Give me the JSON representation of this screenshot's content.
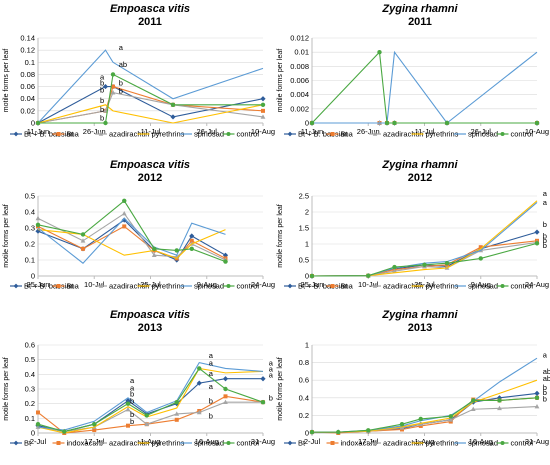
{
  "figure": {
    "ylabel": "motile forms per leaf"
  },
  "chart_data": [
    {
      "type": "line",
      "title": "Empoasca vitis",
      "subtitle": "2011",
      "ylabel": "motile forms per leaf",
      "ylim": [
        0,
        0.14
      ],
      "yticks": [
        0,
        0.02,
        0.04,
        0.06,
        0.08,
        0.1,
        0.12,
        0.14
      ],
      "ytick_labels": [
        "0",
        "0.02",
        "0.04",
        "0.06",
        "0.08",
        "0.1",
        "0.12",
        "0.14"
      ],
      "xlim": [
        0,
        60
      ],
      "xticks": [
        0,
        15,
        30,
        45,
        60
      ],
      "xtick_labels": [
        "11-Jun",
        "26-Jun",
        "11-Jul",
        "26-Jul",
        "10-Aug"
      ],
      "x": [
        0,
        18,
        20,
        36,
        60
      ],
      "series": [
        {
          "name": "Bt + B. bassiana",
          "color": "#2e5c9a",
          "marker": "diamond",
          "values": [
            0,
            0.06,
            0.06,
            0.01,
            0.04
          ]
        },
        {
          "name": "Bt",
          "color": "#ed7d31",
          "marker": "square",
          "values": [
            0,
            0.02,
            0.06,
            0.03,
            0.02
          ]
        },
        {
          "name": "azadirachtin",
          "color": "#a5a5a5",
          "marker": "triangle",
          "values": [
            0,
            0.02,
            0.05,
            0.03,
            0.01
          ]
        },
        {
          "name": "pyrethrins",
          "color": "#ffc000",
          "marker": "none",
          "values": [
            0,
            0.03,
            0.02,
            0.0,
            0.03
          ]
        },
        {
          "name": "spinosad",
          "color": "#5b9bd5",
          "marker": "none",
          "values": [
            0,
            0.12,
            0.1,
            0.04,
            0.09
          ]
        },
        {
          "name": "control",
          "color": "#4aa842",
          "marker": "circle",
          "values": [
            0,
            0.0,
            0.08,
            0.03,
            0.03
          ]
        }
      ],
      "annotations": [
        {
          "text": "a",
          "x": 21,
          "y": 0.12
        },
        {
          "text": "a",
          "x": 16,
          "y": 0.072
        },
        {
          "text": "ab",
          "x": 21,
          "y": 0.092
        },
        {
          "text": "b",
          "x": 16,
          "y": 0.062
        },
        {
          "text": "b",
          "x": 21,
          "y": 0.062
        },
        {
          "text": "b",
          "x": 16,
          "y": 0.05
        },
        {
          "text": "b",
          "x": 21,
          "y": 0.049
        },
        {
          "text": "b",
          "x": 16,
          "y": 0.033
        },
        {
          "text": "b",
          "x": 16,
          "y": 0.018
        },
        {
          "text": "b",
          "x": 16,
          "y": 0.004
        }
      ],
      "legend": "bottom"
    },
    {
      "type": "line",
      "title": "Zygina rhamni",
      "subtitle": "2011",
      "ylabel": "motile forms per leaf",
      "ylim": [
        0,
        0.012
      ],
      "yticks": [
        0,
        0.002,
        0.004,
        0.006,
        0.008,
        0.01,
        0.012
      ],
      "ytick_labels": [
        "0",
        "0.002",
        "0.004",
        "0.006",
        "0.008",
        "0.01",
        "0.012"
      ],
      "xlim": [
        0,
        60
      ],
      "xticks": [
        0,
        15,
        30,
        45,
        60
      ],
      "xtick_labels": [
        "11-Jun",
        "26-Jun",
        "11-Jul",
        "26-Jul",
        "10-Aug"
      ],
      "x": [
        0,
        18,
        20,
        22,
        36,
        60
      ],
      "series": [
        {
          "name": "Bt + B. bassiana",
          "color": "#2e5c9a",
          "marker": "diamond",
          "values": [
            0,
            0,
            0,
            0,
            0,
            0
          ]
        },
        {
          "name": "Bt",
          "color": "#ed7d31",
          "marker": "square",
          "values": [
            0,
            0,
            0,
            0,
            0,
            0
          ]
        },
        {
          "name": "azadirachtin",
          "color": "#a5a5a5",
          "marker": "triangle",
          "values": [
            0,
            0,
            0,
            0,
            0,
            0
          ]
        },
        {
          "name": "pyrethrins",
          "color": "#ffc000",
          "marker": "none",
          "values": [
            0,
            0,
            0,
            0,
            0,
            0
          ]
        },
        {
          "name": "spinosad",
          "color": "#5b9bd5",
          "marker": "none",
          "values": [
            0,
            0,
            0,
            0.01,
            0,
            0.01
          ]
        },
        {
          "name": "control",
          "color": "#4aa842",
          "marker": "circle",
          "values": [
            0,
            0.01,
            0,
            0,
            0,
            0
          ]
        }
      ],
      "annotations": [],
      "legend": "bottom"
    },
    {
      "type": "line",
      "title": "Empoasca vitis",
      "subtitle": "2012",
      "ylabel": "motile forms per leaf",
      "ylim": [
        0,
        0.5
      ],
      "yticks": [
        0,
        0.1,
        0.2,
        0.3,
        0.4,
        0.5
      ],
      "ytick_labels": [
        "0",
        "0.1",
        "0.2",
        "0.3",
        "0.4",
        "0.5"
      ],
      "xlim": [
        0,
        60
      ],
      "xticks": [
        0,
        15,
        30,
        45,
        60
      ],
      "xtick_labels": [
        "25-Jun",
        "10-Jul",
        "25-Jul",
        "9-Aug",
        "24-Aug"
      ],
      "x": [
        0,
        12,
        23,
        31,
        37,
        41,
        50
      ],
      "series": [
        {
          "name": "Bt + B. bassiana",
          "color": "#2e5c9a",
          "marker": "diamond",
          "values": [
            0.28,
            0.17,
            0.35,
            0.16,
            0.1,
            0.25,
            0.13
          ]
        },
        {
          "name": "Bt",
          "color": "#ed7d31",
          "marker": "square",
          "values": [
            0.31,
            0.17,
            0.31,
            0.16,
            0.11,
            0.22,
            0.11
          ]
        },
        {
          "name": "azadirachtin",
          "color": "#a5a5a5",
          "marker": "triangle",
          "values": [
            0.36,
            0.22,
            0.39,
            0.13,
            0.12,
            0.2,
            0.1
          ]
        },
        {
          "name": "pyrethrins",
          "color": "#ffc000",
          "marker": "none",
          "values": [
            0.29,
            0.26,
            0.13,
            0.16,
            0.11,
            0.2,
            0.29
          ]
        },
        {
          "name": "spinosad",
          "color": "#5b9bd5",
          "marker": "none",
          "values": [
            0.3,
            0.08,
            0.36,
            0.18,
            0.13,
            0.33,
            0.26
          ]
        },
        {
          "name": "control",
          "color": "#4aa842",
          "marker": "circle",
          "values": [
            0.32,
            0.26,
            0.47,
            0.17,
            0.16,
            0.17,
            0.09
          ]
        }
      ],
      "annotations": [],
      "legend": "bottom"
    },
    {
      "type": "line",
      "title": "Zygina rhamni",
      "subtitle": "2012",
      "ylabel": "motile forms per leaf",
      "ylim": [
        0,
        2.5
      ],
      "yticks": [
        0,
        0.5,
        1,
        1.5,
        2,
        2.5
      ],
      "ytick_labels": [
        "0",
        "0.5",
        "1",
        "1.5",
        "2",
        "2.5"
      ],
      "xlim": [
        0,
        60
      ],
      "xticks": [
        0,
        15,
        30,
        45,
        60
      ],
      "xtick_labels": [
        "25-Jun",
        "10-Jul",
        "25-Jul",
        "9-Aug",
        "24-Aug"
      ],
      "x": [
        0,
        15,
        22,
        30,
        36,
        45,
        60
      ],
      "series": [
        {
          "name": "Bt + B. bassiana",
          "color": "#2e5c9a",
          "marker": "diamond",
          "values": [
            0,
            0.01,
            0.22,
            0.35,
            0.3,
            0.85,
            1.37
          ]
        },
        {
          "name": "Bt",
          "color": "#ed7d31",
          "marker": "square",
          "values": [
            0,
            0.01,
            0.2,
            0.3,
            0.35,
            0.9,
            1.1
          ]
        },
        {
          "name": "azadirachtin",
          "color": "#a5a5a5",
          "marker": "triangle",
          "values": [
            0,
            0.01,
            0.15,
            0.3,
            0.25,
            0.8,
            1.05
          ]
        },
        {
          "name": "pyrethrins",
          "color": "#ffc000",
          "marker": "none",
          "values": [
            0,
            0.01,
            0.1,
            0.2,
            0.25,
            0.85,
            2.35
          ]
        },
        {
          "name": "spinosad",
          "color": "#5b9bd5",
          "marker": "none",
          "values": [
            0,
            0.01,
            0.25,
            0.4,
            0.45,
            0.8,
            2.3
          ]
        },
        {
          "name": "control",
          "color": "#4aa842",
          "marker": "circle",
          "values": [
            0,
            0.01,
            0.28,
            0.35,
            0.4,
            0.55,
            1.02
          ]
        }
      ],
      "annotations": [
        {
          "text": "a",
          "x": 61,
          "y": 2.5
        },
        {
          "text": "a",
          "x": 61,
          "y": 2.22
        },
        {
          "text": "b",
          "x": 61,
          "y": 1.53
        },
        {
          "text": "b",
          "x": 61,
          "y": 1.17
        },
        {
          "text": "b",
          "x": 61,
          "y": 1.03
        },
        {
          "text": "b",
          "x": 61,
          "y": 0.88
        }
      ],
      "legend": "bottom"
    },
    {
      "type": "line",
      "title": "Empoasca vitis",
      "subtitle": "2013",
      "ylabel": "motile forms per leaf",
      "ylim": [
        0,
        0.6
      ],
      "yticks": [
        0,
        0.1,
        0.2,
        0.3,
        0.4,
        0.5,
        0.6
      ],
      "ytick_labels": [
        "0",
        "0.1",
        "0.2",
        "0.3",
        "0.4",
        "0.5",
        "0.6"
      ],
      "xlim": [
        0,
        60
      ],
      "xticks": [
        0,
        15,
        30,
        45,
        60
      ],
      "xtick_labels": [
        "2-Jul",
        "17-Jul",
        "1-Aug",
        "16-Aug",
        "31-Aug"
      ],
      "x": [
        0,
        7,
        15,
        24,
        29,
        37,
        43,
        50,
        60
      ],
      "series": [
        {
          "name": "Bt",
          "color": "#2e5c9a",
          "marker": "diamond",
          "values": [
            0.05,
            0.01,
            0.06,
            0.22,
            0.13,
            0.2,
            0.34,
            0.37,
            0.37
          ]
        },
        {
          "name": "indoxacarb",
          "color": "#ed7d31",
          "marker": "square",
          "values": [
            0.14,
            0.0,
            0.02,
            0.05,
            0.06,
            0.09,
            0.15,
            0.25,
            0.21
          ]
        },
        {
          "name": "azadirachtin",
          "color": "#a5a5a5",
          "marker": "triangle",
          "values": [
            0.04,
            0.01,
            0.04,
            0.16,
            0.06,
            0.13,
            0.14,
            0.21,
            0.21
          ]
        },
        {
          "name": "pyrethrins",
          "color": "#ffc000",
          "marker": "none",
          "values": [
            0.04,
            0.0,
            0.04,
            0.18,
            0.11,
            0.17,
            0.44,
            0.41,
            0.42
          ]
        },
        {
          "name": "spinosad",
          "color": "#5b9bd5",
          "marker": "none",
          "values": [
            0.04,
            0.02,
            0.08,
            0.24,
            0.14,
            0.22,
            0.48,
            0.44,
            0.42
          ]
        },
        {
          "name": "control",
          "color": "#4aa842",
          "marker": "circle",
          "values": [
            0.06,
            0.01,
            0.06,
            0.2,
            0.12,
            0.21,
            0.44,
            0.3,
            0.21
          ]
        }
      ],
      "annotations": [
        {
          "text": "a",
          "x": 24,
          "y": 0.34
        },
        {
          "text": "a",
          "x": 24,
          "y": 0.29
        },
        {
          "text": "b",
          "x": 24,
          "y": 0.25
        },
        {
          "text": "b",
          "x": 24,
          "y": 0.2
        },
        {
          "text": "b",
          "x": 24,
          "y": 0.11
        },
        {
          "text": "b",
          "x": 24,
          "y": 0.06
        },
        {
          "text": "a",
          "x": 45,
          "y": 0.51
        },
        {
          "text": "a",
          "x": 45,
          "y": 0.46
        },
        {
          "text": "a",
          "x": 45,
          "y": 0.39
        },
        {
          "text": "a",
          "x": 45,
          "y": 0.3
        },
        {
          "text": "b",
          "x": 45,
          "y": 0.2
        },
        {
          "text": "b",
          "x": 45,
          "y": 0.1
        },
        {
          "text": "a",
          "x": 61,
          "y": 0.46
        },
        {
          "text": "a",
          "x": 61,
          "y": 0.42
        },
        {
          "text": "a",
          "x": 61,
          "y": 0.38
        },
        {
          "text": "b",
          "x": 61,
          "y": 0.22
        }
      ],
      "legend": "bottom"
    },
    {
      "type": "line",
      "title": "Zygina rhamni",
      "subtitle": "2013",
      "ylabel": "motile forms per leaf",
      "ylim": [
        0,
        1
      ],
      "yticks": [
        0,
        0.2,
        0.4,
        0.6,
        0.8,
        1
      ],
      "ytick_labels": [
        "0",
        "0.2",
        "0.4",
        "0.6",
        "0.8",
        "1"
      ],
      "xlim": [
        0,
        60
      ],
      "xticks": [
        0,
        15,
        30,
        45,
        60
      ],
      "xtick_labels": [
        "2-Jul",
        "17-Jul",
        "1-Aug",
        "16-Aug",
        "31-Aug"
      ],
      "x": [
        0,
        7,
        15,
        24,
        29,
        37,
        43,
        50,
        60
      ],
      "series": [
        {
          "name": "Bt",
          "color": "#2e5c9a",
          "marker": "diamond",
          "values": [
            0.01,
            0.01,
            0.02,
            0.05,
            0.1,
            0.15,
            0.35,
            0.4,
            0.45
          ]
        },
        {
          "name": "indoxacarb",
          "color": "#ed7d31",
          "marker": "square",
          "values": [
            0.01,
            0.0,
            0.02,
            0.04,
            0.08,
            0.13,
            0.38,
            0.37,
            0.4
          ]
        },
        {
          "name": "azadirachtin",
          "color": "#a5a5a5",
          "marker": "triangle",
          "values": [
            0.01,
            0.01,
            0.02,
            0.06,
            0.1,
            0.15,
            0.27,
            0.28,
            0.3
          ]
        },
        {
          "name": "pyrethrins",
          "color": "#ffc000",
          "marker": "none",
          "values": [
            0.01,
            0.01,
            0.02,
            0.07,
            0.11,
            0.17,
            0.35,
            0.45,
            0.6
          ]
        },
        {
          "name": "spinosad",
          "color": "#5b9bd5",
          "marker": "none",
          "values": [
            0.01,
            0.01,
            0.03,
            0.08,
            0.14,
            0.2,
            0.36,
            0.58,
            0.85
          ]
        },
        {
          "name": "control",
          "color": "#4aa842",
          "marker": "circle",
          "values": [
            0.01,
            0.01,
            0.03,
            0.1,
            0.16,
            0.19,
            0.37,
            0.37,
            0.4
          ]
        }
      ],
      "annotations": [
        {
          "text": "a",
          "x": 61,
          "y": 0.86
        },
        {
          "text": "ab",
          "x": 61,
          "y": 0.67
        },
        {
          "text": "ab",
          "x": 61,
          "y": 0.59
        },
        {
          "text": "b",
          "x": 61,
          "y": 0.49
        },
        {
          "text": "b",
          "x": 61,
          "y": 0.43
        },
        {
          "text": "b",
          "x": 61,
          "y": 0.36
        }
      ],
      "legend": "bottom"
    }
  ]
}
